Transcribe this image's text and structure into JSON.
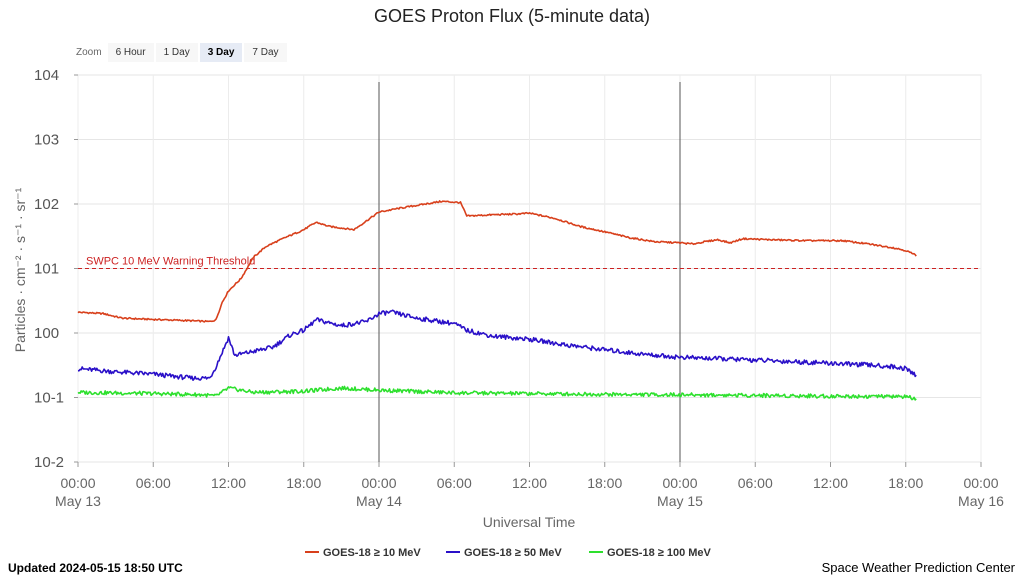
{
  "zoom": {
    "label": "Zoom",
    "buttons": [
      "6 Hour",
      "1 Day",
      "3 Day",
      "7 Day"
    ],
    "active": "3 Day"
  },
  "footer": {
    "updated": "Updated 2024-05-15 18:50 UTC",
    "credit": "Space Weather Prediction Center"
  },
  "colors": {
    "p10": "#d8401c",
    "p50": "#2a10c8",
    "p100": "#2ee02e",
    "threshold": "#cc2222"
  },
  "chart_data": {
    "type": "line",
    "title": "GOES Proton Flux (5-minute data)",
    "xlabel": "Universal Time",
    "ylabel": "Particles · cm⁻² · s⁻¹ · sr⁻¹",
    "y_scale": "log",
    "ylim_exp": [
      -2,
      4
    ],
    "xlim": [
      "2024-05-13 00:00",
      "2024-05-16 00:00"
    ],
    "x_ticks": [
      {
        "t": "2024-05-13 00:00",
        "label": "00:00",
        "date": "May 13"
      },
      {
        "t": "2024-05-13 06:00",
        "label": "06:00"
      },
      {
        "t": "2024-05-13 12:00",
        "label": "12:00"
      },
      {
        "t": "2024-05-13 18:00",
        "label": "18:00"
      },
      {
        "t": "2024-05-14 00:00",
        "label": "00:00",
        "date": "May 14"
      },
      {
        "t": "2024-05-14 06:00",
        "label": "06:00"
      },
      {
        "t": "2024-05-14 12:00",
        "label": "12:00"
      },
      {
        "t": "2024-05-14 18:00",
        "label": "18:00"
      },
      {
        "t": "2024-05-15 00:00",
        "label": "00:00",
        "date": "May 15"
      },
      {
        "t": "2024-05-15 06:00",
        "label": "06:00"
      },
      {
        "t": "2024-05-15 12:00",
        "label": "12:00"
      },
      {
        "t": "2024-05-15 18:00",
        "label": "18:00"
      },
      {
        "t": "2024-05-16 00:00",
        "label": "00:00",
        "date": "May 16"
      }
    ],
    "y_ticks": [
      {
        "base": "10",
        "exp": "4"
      },
      {
        "base": "10",
        "exp": "3"
      },
      {
        "base": "10",
        "exp": "2"
      },
      {
        "base": "10",
        "exp": "1"
      },
      {
        "base": "10",
        "exp": "0"
      },
      {
        "base": "10",
        "exp": "-1"
      },
      {
        "base": "10",
        "exp": "-2"
      }
    ],
    "day_lines": [
      "2024-05-14 00:00",
      "2024-05-15 00:00"
    ],
    "threshold": {
      "label": "SWPC 10 MeV Warning Threshold",
      "value": 10
    },
    "legend_position": "bottom-center",
    "grid": true,
    "series": [
      {
        "name": "GOES-18 ≥ 10 MeV",
        "color": "#d8401c",
        "points": [
          [
            "2024-05-13 00:00",
            2.1
          ],
          [
            "2024-05-13 02:00",
            2.0
          ],
          [
            "2024-05-13 03:30",
            1.7
          ],
          [
            "2024-05-13 05:00",
            1.65
          ],
          [
            "2024-05-13 07:00",
            1.6
          ],
          [
            "2024-05-13 09:00",
            1.55
          ],
          [
            "2024-05-13 10:30",
            1.5
          ],
          [
            "2024-05-13 11:00",
            1.6
          ],
          [
            "2024-05-13 11:30",
            3.0
          ],
          [
            "2024-05-13 12:00",
            4.5
          ],
          [
            "2024-05-13 13:00",
            7.0
          ],
          [
            "2024-05-13 14:00",
            15
          ],
          [
            "2024-05-13 15:00",
            22
          ],
          [
            "2024-05-13 16:30",
            30
          ],
          [
            "2024-05-13 18:00",
            40
          ],
          [
            "2024-05-13 19:00",
            52
          ],
          [
            "2024-05-13 20:00",
            45
          ],
          [
            "2024-05-13 22:00",
            40
          ],
          [
            "2024-05-14 00:00",
            75
          ],
          [
            "2024-05-14 01:30",
            85
          ],
          [
            "2024-05-14 03:00",
            95
          ],
          [
            "2024-05-14 05:00",
            110
          ],
          [
            "2024-05-14 06:30",
            105
          ],
          [
            "2024-05-14 07:00",
            65
          ],
          [
            "2024-05-14 09:00",
            68
          ],
          [
            "2024-05-14 11:00",
            70
          ],
          [
            "2024-05-14 12:00",
            72
          ],
          [
            "2024-05-14 14:00",
            60
          ],
          [
            "2024-05-14 16:00",
            45
          ],
          [
            "2024-05-14 18:00",
            37
          ],
          [
            "2024-05-14 20:00",
            30
          ],
          [
            "2024-05-14 22:00",
            26
          ],
          [
            "2024-05-15 00:00",
            25
          ],
          [
            "2024-05-15 01:00",
            24
          ],
          [
            "2024-05-15 02:00",
            26
          ],
          [
            "2024-05-15 03:00",
            28
          ],
          [
            "2024-05-15 04:00",
            25
          ],
          [
            "2024-05-15 05:00",
            29
          ],
          [
            "2024-05-15 07:00",
            28
          ],
          [
            "2024-05-15 10:00",
            27
          ],
          [
            "2024-05-15 13:00",
            27
          ],
          [
            "2024-05-15 15:00",
            24
          ],
          [
            "2024-05-15 17:00",
            21
          ],
          [
            "2024-05-15 18:00",
            19
          ],
          [
            "2024-05-15 18:50",
            16
          ]
        ]
      },
      {
        "name": "GOES-18 ≥ 50 MeV",
        "color": "#2a10c8",
        "points": [
          [
            "2024-05-13 00:00",
            0.28
          ],
          [
            "2024-05-13 03:00",
            0.25
          ],
          [
            "2024-05-13 06:00",
            0.23
          ],
          [
            "2024-05-13 09:00",
            0.2
          ],
          [
            "2024-05-13 10:30",
            0.2
          ],
          [
            "2024-05-13 11:00",
            0.3
          ],
          [
            "2024-05-13 12:00",
            0.85
          ],
          [
            "2024-05-13 12:30",
            0.45
          ],
          [
            "2024-05-13 14:00",
            0.52
          ],
          [
            "2024-05-13 15:30",
            0.6
          ],
          [
            "2024-05-13 17:00",
            0.95
          ],
          [
            "2024-05-13 18:00",
            1.1
          ],
          [
            "2024-05-13 19:00",
            1.6
          ],
          [
            "2024-05-13 21:00",
            1.3
          ],
          [
            "2024-05-13 23:00",
            1.5
          ],
          [
            "2024-05-14 00:00",
            2.0
          ],
          [
            "2024-05-14 01:00",
            2.1
          ],
          [
            "2024-05-14 03:00",
            1.7
          ],
          [
            "2024-05-14 06:00",
            1.4
          ],
          [
            "2024-05-14 07:00",
            1.1
          ],
          [
            "2024-05-14 09:00",
            0.9
          ],
          [
            "2024-05-14 12:00",
            0.8
          ],
          [
            "2024-05-14 15:00",
            0.65
          ],
          [
            "2024-05-14 18:00",
            0.55
          ],
          [
            "2024-05-14 21:00",
            0.47
          ],
          [
            "2024-05-15 00:00",
            0.42
          ],
          [
            "2024-05-15 03:00",
            0.4
          ],
          [
            "2024-05-15 06:00",
            0.38
          ],
          [
            "2024-05-15 09:00",
            0.36
          ],
          [
            "2024-05-15 12:00",
            0.34
          ],
          [
            "2024-05-15 15:00",
            0.32
          ],
          [
            "2024-05-15 17:00",
            0.3
          ],
          [
            "2024-05-15 18:00",
            0.28
          ],
          [
            "2024-05-15 18:50",
            0.22
          ]
        ]
      },
      {
        "name": "GOES-18 ≥ 100 MeV",
        "color": "#2ee02e",
        "points": [
          [
            "2024-05-13 00:00",
            0.12
          ],
          [
            "2024-05-13 06:00",
            0.115
          ],
          [
            "2024-05-13 10:00",
            0.11
          ],
          [
            "2024-05-13 11:00",
            0.105
          ],
          [
            "2024-05-13 12:00",
            0.14
          ],
          [
            "2024-05-13 14:00",
            0.12
          ],
          [
            "2024-05-13 18:00",
            0.125
          ],
          [
            "2024-05-13 21:00",
            0.14
          ],
          [
            "2024-05-14 00:00",
            0.13
          ],
          [
            "2024-05-14 06:00",
            0.118
          ],
          [
            "2024-05-14 12:00",
            0.115
          ],
          [
            "2024-05-14 18:00",
            0.112
          ],
          [
            "2024-05-15 00:00",
            0.11
          ],
          [
            "2024-05-15 06:00",
            0.108
          ],
          [
            "2024-05-15 12:00",
            0.105
          ],
          [
            "2024-05-15 18:00",
            0.103
          ],
          [
            "2024-05-15 18:50",
            0.095
          ]
        ]
      }
    ]
  }
}
